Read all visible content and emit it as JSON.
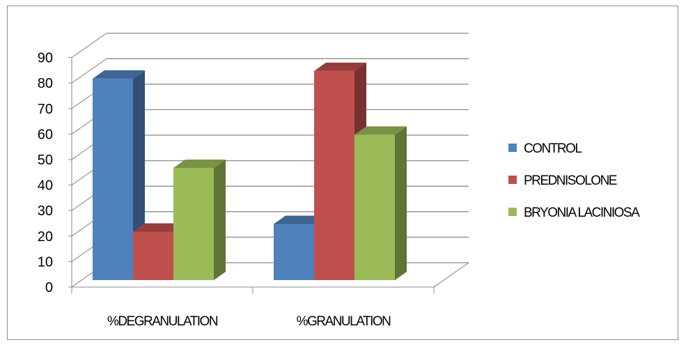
{
  "chart_data": {
    "type": "bar",
    "style": "3d-clustered-column",
    "categories": [
      "%DEGRANULATION",
      "%GRANULATION"
    ],
    "series": [
      {
        "name": "CONTROL",
        "values": [
          79,
          22
        ],
        "color": "#4f81bd"
      },
      {
        "name": "PREDNISOLONE",
        "values": [
          19,
          82
        ],
        "color": "#c0504d"
      },
      {
        "name": "BRYONIA LACINIOSA",
        "values": [
          44,
          57
        ],
        "color": "#9bbb59"
      }
    ],
    "ylim": [
      0,
      90
    ],
    "yticks": [
      "0",
      "10",
      "20",
      "30",
      "40",
      "50",
      "60",
      "70",
      "80",
      "90"
    ],
    "grid": true,
    "legend_position": "right"
  }
}
